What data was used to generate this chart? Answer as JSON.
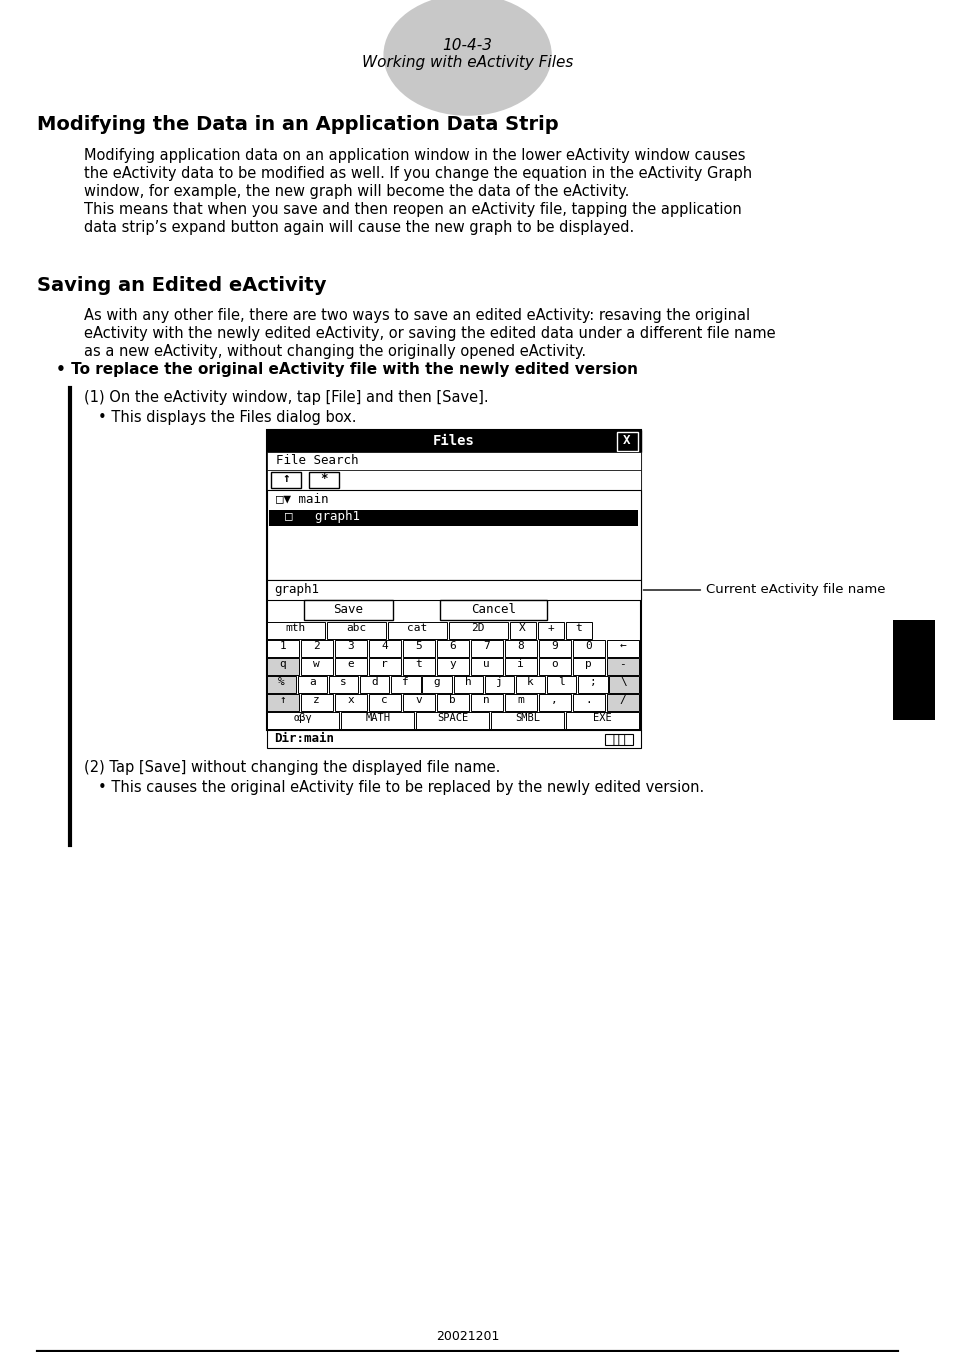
{
  "page_num": "10-4-3",
  "page_subtitle": "Working with eActivity Files",
  "section1_title": "Modifying the Data in an Application Data Strip",
  "section1_body": "Modifying application data on an application window in the lower eActivity window causes\nthe eActivity data to be modified as well. If you change the equation in the eActivity Graph\nwindow, for example, the new graph will become the data of the eActivity.\nThis means that when you save and then reopen an eActivity file, tapping the application\ndata strip’s expand button again will cause the new graph to be displayed.",
  "section2_title": "Saving an Edited eActivity",
  "section2_body": "As with any other file, there are two ways to save an edited eActivity: resaving the original\neActivity with the newly edited eActivity, or saving the edited data under a different file name\nas a new eActivity, without changing the originally opened eActivity.",
  "bullet_title": "• To replace the original eActivity file with the newly edited version",
  "step1": "(1) On the eActivity window, tap [File] and then [Save].",
  "step1_bullet": "• This displays the Files dialog box.",
  "annotation": "Current eActivity file name",
  "step2": "(2) Tap [Save] without changing the displayed file name.",
  "step2_bullet": "• This causes the original eActivity file to be replaced by the newly edited version.",
  "footer": "20021201",
  "bg_color": "#ffffff",
  "text_color": "#000000",
  "ellipse_color": "#c8c8c8"
}
